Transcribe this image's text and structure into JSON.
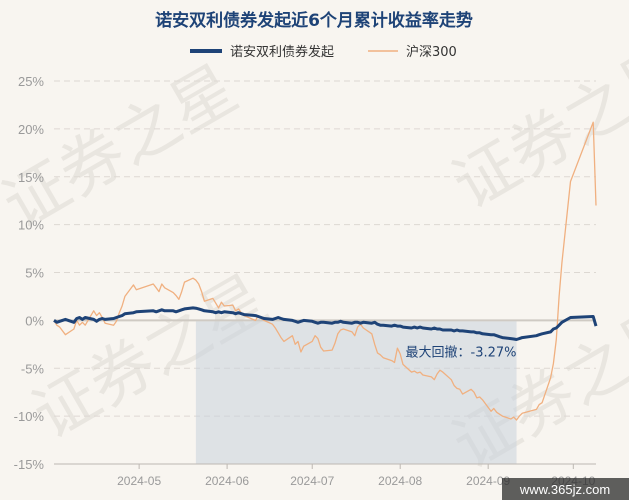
{
  "chart_data": {
    "type": "line",
    "title": "诺安双利债券发起近6个月累计收益率走势",
    "xlabel": "",
    "ylabel": "",
    "ylim": [
      -15,
      25
    ],
    "yticks": [
      25,
      20,
      15,
      10,
      5,
      0,
      -5,
      -10,
      -15
    ],
    "ytick_labels": [
      "25%",
      "20%",
      "15%",
      "10%",
      "5%",
      "0%",
      "-5%",
      "-10%",
      "-15%"
    ],
    "x_range": [
      "2024-04-01",
      "2024-10-09"
    ],
    "xticks": [
      "2024-05-01",
      "2024-06-01",
      "2024-07-01",
      "2024-08-01",
      "2024-09-01",
      "2024-10-01"
    ],
    "xtick_labels": [
      "2024-05",
      "2024-06",
      "2024-07",
      "2024-08",
      "2024-09",
      "2024-10"
    ],
    "grid": "horizontal dashed",
    "legend_position": "top-center",
    "series": [
      {
        "name": "诺安双利债券发起",
        "color": "#1e4377",
        "points": [
          [
            "2024-04-01",
            0.0
          ],
          [
            "2024-04-02",
            -0.2
          ],
          [
            "2024-04-03",
            -0.1
          ],
          [
            "2024-04-05",
            0.1
          ],
          [
            "2024-04-08",
            -0.2
          ],
          [
            "2024-04-09",
            0.2
          ],
          [
            "2024-04-10",
            0.3
          ],
          [
            "2024-04-11",
            0.1
          ],
          [
            "2024-04-12",
            0.3
          ],
          [
            "2024-04-15",
            0.1
          ],
          [
            "2024-04-16",
            -0.1
          ],
          [
            "2024-04-17",
            0.1
          ],
          [
            "2024-04-18",
            0.2
          ],
          [
            "2024-04-19",
            0.1
          ],
          [
            "2024-04-22",
            0.2
          ],
          [
            "2024-04-23",
            0.3
          ],
          [
            "2024-04-24",
            0.4
          ],
          [
            "2024-04-25",
            0.5
          ],
          [
            "2024-04-26",
            0.7
          ],
          [
            "2024-04-29",
            0.8
          ],
          [
            "2024-04-30",
            0.9
          ],
          [
            "2024-05-06",
            1.0
          ],
          [
            "2024-05-07",
            0.9
          ],
          [
            "2024-05-08",
            1.0
          ],
          [
            "2024-05-09",
            1.1
          ],
          [
            "2024-05-10",
            1.0
          ],
          [
            "2024-05-13",
            1.0
          ],
          [
            "2024-05-14",
            0.9
          ],
          [
            "2024-05-15",
            1.0
          ],
          [
            "2024-05-16",
            1.1
          ],
          [
            "2024-05-17",
            1.2
          ],
          [
            "2024-05-20",
            1.3
          ],
          [
            "2024-05-21",
            1.27
          ],
          [
            "2024-05-22",
            1.2
          ],
          [
            "2024-05-23",
            1.1
          ],
          [
            "2024-05-24",
            1.0
          ],
          [
            "2024-05-27",
            0.9
          ],
          [
            "2024-05-28",
            0.8
          ],
          [
            "2024-05-29",
            0.9
          ],
          [
            "2024-05-30",
            0.8
          ],
          [
            "2024-05-31",
            0.9
          ],
          [
            "2024-06-03",
            0.8
          ],
          [
            "2024-06-04",
            0.7
          ],
          [
            "2024-06-05",
            0.8
          ],
          [
            "2024-06-06",
            0.7
          ],
          [
            "2024-06-07",
            0.6
          ],
          [
            "2024-06-11",
            0.5
          ],
          [
            "2024-06-12",
            0.4
          ],
          [
            "2024-06-13",
            0.3
          ],
          [
            "2024-06-14",
            0.2
          ],
          [
            "2024-06-17",
            0.1
          ],
          [
            "2024-06-18",
            0.2
          ],
          [
            "2024-06-19",
            0.3
          ],
          [
            "2024-06-20",
            0.2
          ],
          [
            "2024-06-21",
            0.1
          ],
          [
            "2024-06-24",
            0.0
          ],
          [
            "2024-06-25",
            -0.1
          ],
          [
            "2024-06-26",
            -0.2
          ],
          [
            "2024-06-27",
            -0.1
          ],
          [
            "2024-06-28",
            0.0
          ],
          [
            "2024-07-01",
            -0.1
          ],
          [
            "2024-07-02",
            -0.2
          ],
          [
            "2024-07-03",
            -0.3
          ],
          [
            "2024-07-04",
            -0.2
          ],
          [
            "2024-07-05",
            -0.2
          ],
          [
            "2024-07-08",
            -0.3
          ],
          [
            "2024-07-09",
            -0.2
          ],
          [
            "2024-07-10",
            -0.2
          ],
          [
            "2024-07-11",
            -0.1
          ],
          [
            "2024-07-12",
            -0.2
          ],
          [
            "2024-07-15",
            -0.3
          ],
          [
            "2024-07-16",
            -0.2
          ],
          [
            "2024-07-17",
            -0.2
          ],
          [
            "2024-07-18",
            -0.3
          ],
          [
            "2024-07-19",
            -0.2
          ],
          [
            "2024-07-22",
            -0.3
          ],
          [
            "2024-07-23",
            -0.2
          ],
          [
            "2024-07-24",
            -0.4
          ],
          [
            "2024-07-25",
            -0.5
          ],
          [
            "2024-07-26",
            -0.5
          ],
          [
            "2024-07-29",
            -0.6
          ],
          [
            "2024-07-30",
            -0.5
          ],
          [
            "2024-07-31",
            -0.6
          ],
          [
            "2024-08-01",
            -0.6
          ],
          [
            "2024-08-02",
            -0.7
          ],
          [
            "2024-08-05",
            -0.8
          ],
          [
            "2024-08-06",
            -0.7
          ],
          [
            "2024-08-07",
            -0.8
          ],
          [
            "2024-08-08",
            -0.7
          ],
          [
            "2024-08-09",
            -0.8
          ],
          [
            "2024-08-12",
            -0.9
          ],
          [
            "2024-08-13",
            -0.8
          ],
          [
            "2024-08-14",
            -0.9
          ],
          [
            "2024-08-15",
            -0.9
          ],
          [
            "2024-08-16",
            -1.0
          ],
          [
            "2024-08-19",
            -1.0
          ],
          [
            "2024-08-20",
            -1.1
          ],
          [
            "2024-08-21",
            -1.0
          ],
          [
            "2024-08-22",
            -1.1
          ],
          [
            "2024-08-23",
            -1.1
          ],
          [
            "2024-08-26",
            -1.2
          ],
          [
            "2024-08-27",
            -1.2
          ],
          [
            "2024-08-28",
            -1.3
          ],
          [
            "2024-08-29",
            -1.3
          ],
          [
            "2024-08-30",
            -1.4
          ],
          [
            "2024-09-02",
            -1.5
          ],
          [
            "2024-09-03",
            -1.5
          ],
          [
            "2024-09-04",
            -1.6
          ],
          [
            "2024-09-05",
            -1.7
          ],
          [
            "2024-09-06",
            -1.8
          ],
          [
            "2024-09-09",
            -1.9
          ],
          [
            "2024-09-10",
            -1.95
          ],
          [
            "2024-09-11",
            -2.0
          ],
          [
            "2024-09-12",
            -1.9
          ],
          [
            "2024-09-13",
            -1.8
          ],
          [
            "2024-09-18",
            -1.6
          ],
          [
            "2024-09-19",
            -1.5
          ],
          [
            "2024-09-20",
            -1.4
          ],
          [
            "2024-09-23",
            -1.2
          ],
          [
            "2024-09-24",
            -0.9
          ],
          [
            "2024-09-25",
            -0.8
          ],
          [
            "2024-09-26",
            -0.5
          ],
          [
            "2024-09-27",
            -0.2
          ],
          [
            "2024-09-30",
            0.3
          ],
          [
            "2024-10-08",
            0.4
          ],
          [
            "2024-10-09",
            -0.6
          ]
        ]
      },
      {
        "name": "沪深300",
        "color": "#f0b080",
        "points": [
          [
            "2024-04-01",
            0.0
          ],
          [
            "2024-04-02",
            -0.5
          ],
          [
            "2024-04-03",
            -0.7
          ],
          [
            "2024-04-05",
            -1.5
          ],
          [
            "2024-04-08",
            -0.9
          ],
          [
            "2024-04-09",
            0.0
          ],
          [
            "2024-04-10",
            -0.5
          ],
          [
            "2024-04-11",
            -0.2
          ],
          [
            "2024-04-12",
            -0.5
          ],
          [
            "2024-04-15",
            1.0
          ],
          [
            "2024-04-16",
            0.5
          ],
          [
            "2024-04-17",
            0.8
          ],
          [
            "2024-04-18",
            0.3
          ],
          [
            "2024-04-19",
            -0.3
          ],
          [
            "2024-04-22",
            -0.5
          ],
          [
            "2024-04-23",
            -0.1
          ],
          [
            "2024-04-24",
            0.8
          ],
          [
            "2024-04-25",
            1.5
          ],
          [
            "2024-04-26",
            2.5
          ],
          [
            "2024-04-29",
            3.7
          ],
          [
            "2024-04-30",
            3.2
          ],
          [
            "2024-05-06",
            3.8
          ],
          [
            "2024-05-07",
            3.4
          ],
          [
            "2024-05-08",
            3.0
          ],
          [
            "2024-05-09",
            3.8
          ],
          [
            "2024-05-10",
            3.4
          ],
          [
            "2024-05-13",
            2.9
          ],
          [
            "2024-05-14",
            2.6
          ],
          [
            "2024-05-15",
            2.2
          ],
          [
            "2024-05-16",
            3.0
          ],
          [
            "2024-05-17",
            4.0
          ],
          [
            "2024-05-20",
            4.4
          ],
          [
            "2024-05-21",
            4.2
          ],
          [
            "2024-05-22",
            3.8
          ],
          [
            "2024-05-23",
            3.0
          ],
          [
            "2024-05-24",
            2.0
          ],
          [
            "2024-05-27",
            2.3
          ],
          [
            "2024-05-28",
            1.8
          ],
          [
            "2024-05-29",
            1.3
          ],
          [
            "2024-05-30",
            1.9
          ],
          [
            "2024-05-31",
            1.5
          ],
          [
            "2024-06-03",
            1.6
          ],
          [
            "2024-06-04",
            1.0
          ],
          [
            "2024-06-05",
            1.2
          ],
          [
            "2024-06-06",
            0.8
          ],
          [
            "2024-06-07",
            0.5
          ],
          [
            "2024-06-11",
            0.0
          ],
          [
            "2024-06-12",
            0.5
          ],
          [
            "2024-06-13",
            0.2
          ],
          [
            "2024-06-14",
            0.0
          ],
          [
            "2024-06-17",
            -0.4
          ],
          [
            "2024-06-18",
            -0.8
          ],
          [
            "2024-06-19",
            -1.3
          ],
          [
            "2024-06-20",
            -1.8
          ],
          [
            "2024-06-21",
            -2.2
          ],
          [
            "2024-06-24",
            -1.6
          ],
          [
            "2024-06-25",
            -2.5
          ],
          [
            "2024-06-26",
            -2.2
          ],
          [
            "2024-06-27",
            -3.3
          ],
          [
            "2024-06-28",
            -2.7
          ],
          [
            "2024-07-01",
            -2.2
          ],
          [
            "2024-07-02",
            -1.6
          ],
          [
            "2024-07-03",
            -1.9
          ],
          [
            "2024-07-04",
            -2.8
          ],
          [
            "2024-07-05",
            -3.2
          ],
          [
            "2024-07-08",
            -3.1
          ],
          [
            "2024-07-09",
            -2.4
          ],
          [
            "2024-07-10",
            -1.4
          ],
          [
            "2024-07-11",
            -1.0
          ],
          [
            "2024-07-12",
            -0.9
          ],
          [
            "2024-07-15",
            -1.2
          ],
          [
            "2024-07-16",
            -1.6
          ],
          [
            "2024-07-17",
            -0.7
          ],
          [
            "2024-07-18",
            -0.4
          ],
          [
            "2024-07-19",
            -0.8
          ],
          [
            "2024-07-22",
            -1.4
          ],
          [
            "2024-07-23",
            -2.5
          ],
          [
            "2024-07-24",
            -3.4
          ],
          [
            "2024-07-25",
            -3.6
          ],
          [
            "2024-07-26",
            -3.9
          ],
          [
            "2024-07-29",
            -4.2
          ],
          [
            "2024-07-30",
            -4.4
          ],
          [
            "2024-07-31",
            -2.9
          ],
          [
            "2024-08-01",
            -3.5
          ],
          [
            "2024-08-02",
            -4.6
          ],
          [
            "2024-08-05",
            -5.4
          ],
          [
            "2024-08-06",
            -5.3
          ],
          [
            "2024-08-07",
            -5.5
          ],
          [
            "2024-08-08",
            -5.4
          ],
          [
            "2024-08-09",
            -5.7
          ],
          [
            "2024-08-12",
            -5.9
          ],
          [
            "2024-08-13",
            -6.2
          ],
          [
            "2024-08-14",
            -5.6
          ],
          [
            "2024-08-15",
            -5.2
          ],
          [
            "2024-08-16",
            -5.4
          ],
          [
            "2024-08-19",
            -6.2
          ],
          [
            "2024-08-20",
            -6.8
          ],
          [
            "2024-08-21",
            -7.1
          ],
          [
            "2024-08-22",
            -7.2
          ],
          [
            "2024-08-23",
            -7.7
          ],
          [
            "2024-08-26",
            -7.2
          ],
          [
            "2024-08-27",
            -7.5
          ],
          [
            "2024-08-28",
            -8.1
          ],
          [
            "2024-08-29",
            -8.0
          ],
          [
            "2024-08-30",
            -8.3
          ],
          [
            "2024-09-02",
            -9.5
          ],
          [
            "2024-09-03",
            -9.2
          ],
          [
            "2024-09-04",
            -9.6
          ],
          [
            "2024-09-05",
            -9.8
          ],
          [
            "2024-09-06",
            -10.0
          ],
          [
            "2024-09-09",
            -10.3
          ],
          [
            "2024-09-10",
            -10.1
          ],
          [
            "2024-09-11",
            -10.4
          ],
          [
            "2024-09-12",
            -10.0
          ],
          [
            "2024-09-13",
            -9.7
          ],
          [
            "2024-09-18",
            -9.3
          ],
          [
            "2024-09-19",
            -8.8
          ],
          [
            "2024-09-20",
            -8.6
          ],
          [
            "2024-09-23",
            -6.0
          ],
          [
            "2024-09-24",
            -4.5
          ],
          [
            "2024-09-25",
            -2.0
          ],
          [
            "2024-09-26",
            2.5
          ],
          [
            "2024-09-27",
            6.0
          ],
          [
            "2024-09-30",
            14.5
          ],
          [
            "2024-10-08",
            20.7
          ],
          [
            "2024-10-09",
            12.0
          ]
        ]
      }
    ],
    "max_drawdown": {
      "label": "最大回撤：-3.27%",
      "start": "2024-05-21",
      "end": "2024-09-11"
    },
    "watermark_text": "证券之星",
    "site_label": "www.365jz.com"
  }
}
